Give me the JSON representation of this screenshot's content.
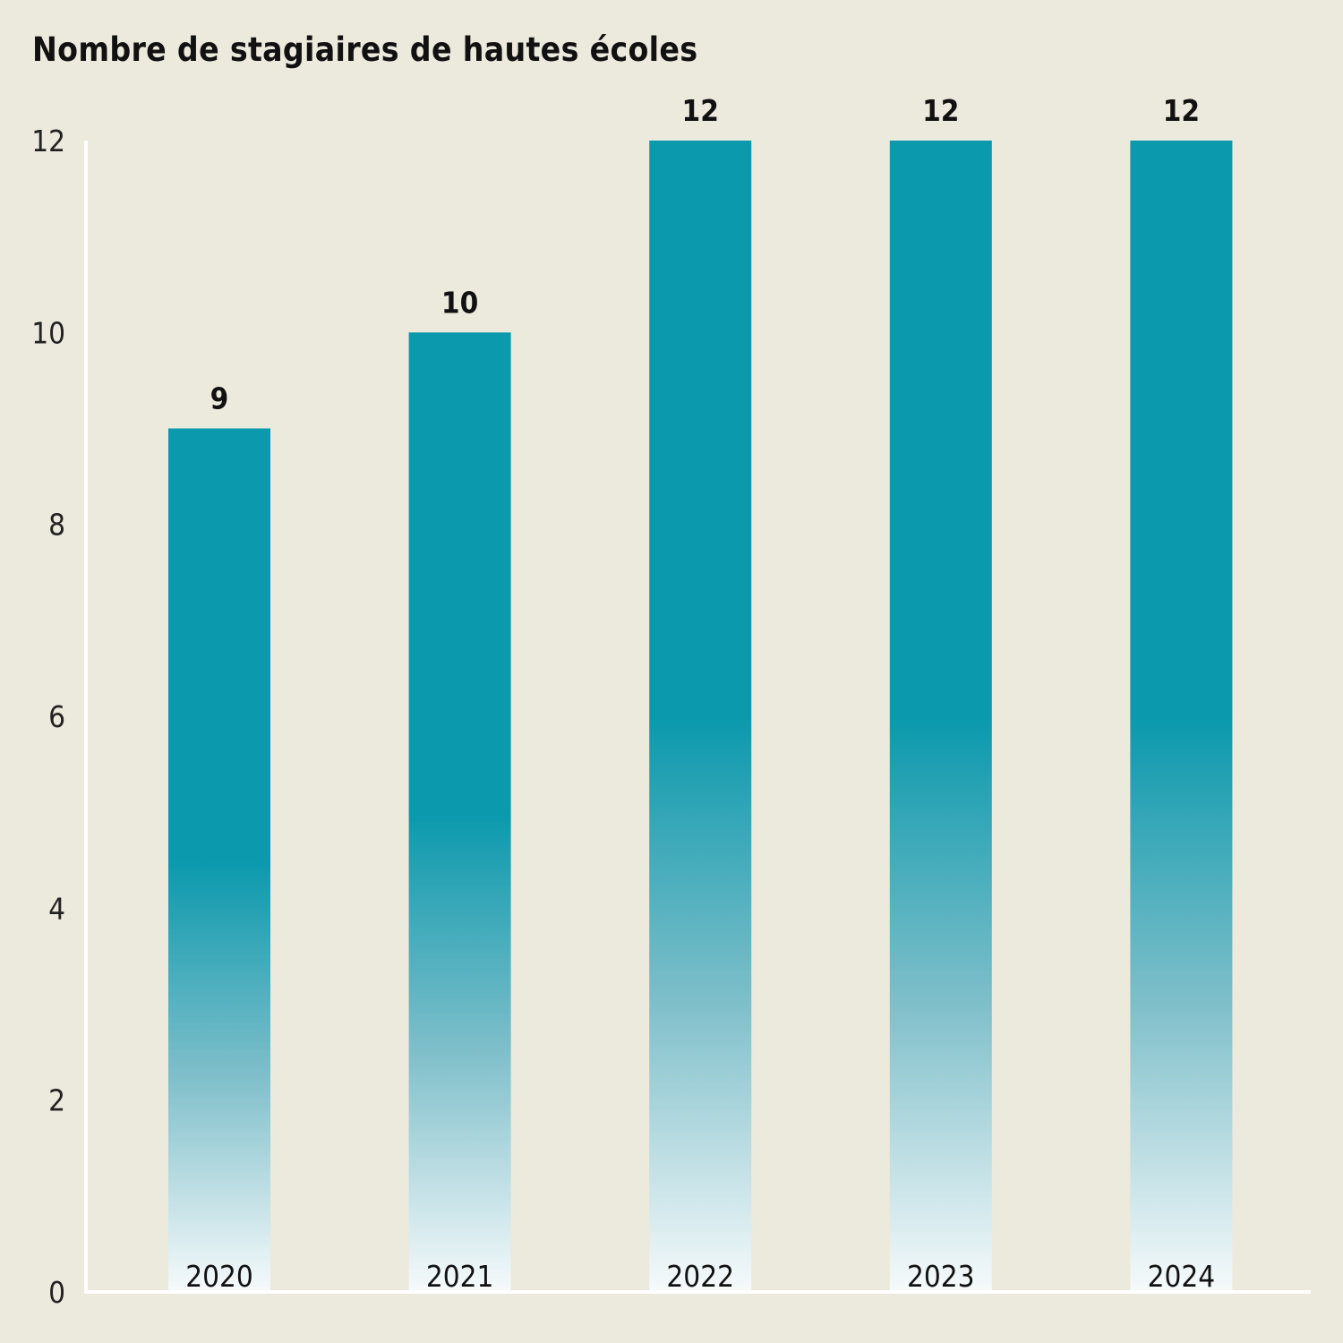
{
  "chart_data": {
    "type": "bar",
    "title": "Nombre de stagiaires de hautes écoles",
    "categories": [
      "2020",
      "2021",
      "2022",
      "2023",
      "2024"
    ],
    "values": [
      9,
      10,
      12,
      12,
      12
    ],
    "data_labels": [
      "9",
      "10",
      "12",
      "12",
      "12"
    ],
    "xlabel": "",
    "ylabel": "",
    "ylim": [
      0,
      12
    ],
    "yticks": [
      0,
      2,
      4,
      6,
      8,
      10,
      12
    ],
    "grid": false,
    "colors": {
      "bar_top": "#0a99ad",
      "bar_bottom": "#f6fafb",
      "axis": "#ffffff",
      "background": "#ece9dd"
    }
  }
}
